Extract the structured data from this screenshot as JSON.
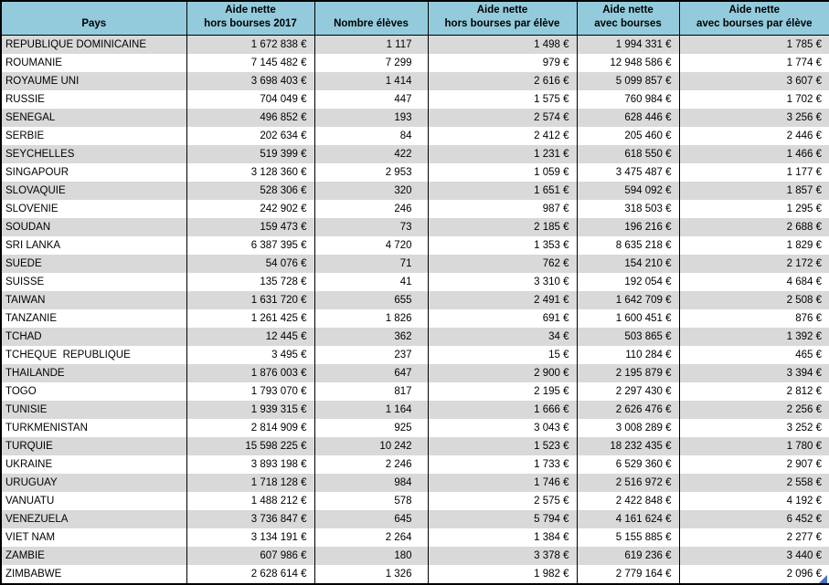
{
  "colors": {
    "header_bg": "#93cbdc",
    "row_alt_bg": "#d9d9d9",
    "row_bg": "#ffffff",
    "border": "#000000",
    "corner_marker": "#4472c4"
  },
  "table": {
    "columns": [
      {
        "key": "pays",
        "label": "Pays"
      },
      {
        "key": "aide_nette_hors_bourses_2017",
        "label": "Aide nette\nhors bourses 2017"
      },
      {
        "key": "nombre_eleves",
        "label": "Nombre élèves"
      },
      {
        "key": "aide_nette_hors_bourses_par_eleve",
        "label": "Aide nette\nhors bourses par élève"
      },
      {
        "key": "aide_nette_avec_bourses",
        "label": "Aide nette\navec bourses"
      },
      {
        "key": "aide_nette_avec_bourses_par_eleve",
        "label": "Aide nette\navec bourses par élève"
      }
    ],
    "rows": [
      [
        "REPUBLIQUE DOMINICAINE",
        "1 672 838 €",
        "1 117",
        "1 498 €",
        "1 994 331 €",
        "1 785 €"
      ],
      [
        "ROUMANIE",
        "7 145 482 €",
        "7 299",
        "979 €",
        "12 948 586 €",
        "1 774 €"
      ],
      [
        "ROYAUME UNI",
        "3 698 403 €",
        "1 414",
        "2 616 €",
        "5 099 857 €",
        "3 607 €"
      ],
      [
        "RUSSIE",
        "704 049 €",
        "447",
        "1 575 €",
        "760 984 €",
        "1 702 €"
      ],
      [
        "SENEGAL",
        "496 852 €",
        "193",
        "2 574 €",
        "628 446 €",
        "3 256 €"
      ],
      [
        "SERBIE",
        "202 634 €",
        "84",
        "2 412 €",
        "205 460 €",
        "2 446 €"
      ],
      [
        "SEYCHELLES",
        "519 399 €",
        "422",
        "1 231 €",
        "618 550 €",
        "1 466 €"
      ],
      [
        "SINGAPOUR",
        "3 128 360 €",
        "2 953",
        "1 059 €",
        "3 475 487 €",
        "1 177 €"
      ],
      [
        "SLOVAQUIE",
        "528 306 €",
        "320",
        "1 651 €",
        "594 092 €",
        "1 857 €"
      ],
      [
        "SLOVENIE",
        "242 902 €",
        "246",
        "987 €",
        "318 503 €",
        "1 295 €"
      ],
      [
        "SOUDAN",
        "159 473 €",
        "73",
        "2 185 €",
        "196 216 €",
        "2 688 €"
      ],
      [
        "SRI LANKA",
        "6 387 395 €",
        "4 720",
        "1 353 €",
        "8 635 218 €",
        "1 829 €"
      ],
      [
        "SUEDE",
        "54 076 €",
        "71",
        "762 €",
        "154 210 €",
        "2 172 €"
      ],
      [
        "SUISSE",
        "135 728 €",
        "41",
        "3 310 €",
        "192 054 €",
        "4 684 €"
      ],
      [
        "TAIWAN",
        "1 631 720 €",
        "655",
        "2 491 €",
        "1 642 709 €",
        "2 508 €"
      ],
      [
        "TANZANIE",
        "1 261 425 €",
        "1 826",
        "691 €",
        "1 600 451 €",
        "876 €"
      ],
      [
        "TCHAD",
        "12 445 €",
        "362",
        "34 €",
        "503 865 €",
        "1 392 €"
      ],
      [
        "TCHEQUE  REPUBLIQUE",
        "3 495 €",
        "237",
        "15 €",
        "110 284 €",
        "465 €"
      ],
      [
        "THAILANDE",
        "1 876 003 €",
        "647",
        "2 900 €",
        "2 195 879 €",
        "3 394 €"
      ],
      [
        "TOGO",
        "1 793 070 €",
        "817",
        "2 195 €",
        "2 297 430 €",
        "2 812 €"
      ],
      [
        "TUNISIE",
        "1 939 315 €",
        "1 164",
        "1 666 €",
        "2 626 476 €",
        "2 256 €"
      ],
      [
        "TURKMENISTAN",
        "2 814 909 €",
        "925",
        "3 043 €",
        "3 008 289 €",
        "3 252 €"
      ],
      [
        "TURQUIE",
        "15 598 225 €",
        "10 242",
        "1 523 €",
        "18 232 435 €",
        "1 780 €"
      ],
      [
        "UKRAINE",
        "3 893 198 €",
        "2 246",
        "1 733 €",
        "6 529 360 €",
        "2 907 €"
      ],
      [
        "URUGUAY",
        "1 718 128 €",
        "984",
        "1 746 €",
        "2 516 972 €",
        "2 558 €"
      ],
      [
        "VANUATU",
        "1 488 212 €",
        "578",
        "2 575 €",
        "2 422 848 €",
        "4 192 €"
      ],
      [
        "VENEZUELA",
        "3 736 847 €",
        "645",
        "5 794 €",
        "4 161 624 €",
        "6 452 €"
      ],
      [
        "VIET NAM",
        "3 134 191 €",
        "2 264",
        "1 384 €",
        "5 155 885 €",
        "2 277 €"
      ],
      [
        "ZAMBIE",
        "607 986 €",
        "180",
        "3 378 €",
        "619 236 €",
        "3 440 €"
      ],
      [
        "ZIMBABWE",
        "2 628 614 €",
        "1 326",
        "1 982 €",
        "2 779 164 €",
        "2 096 €"
      ]
    ]
  }
}
